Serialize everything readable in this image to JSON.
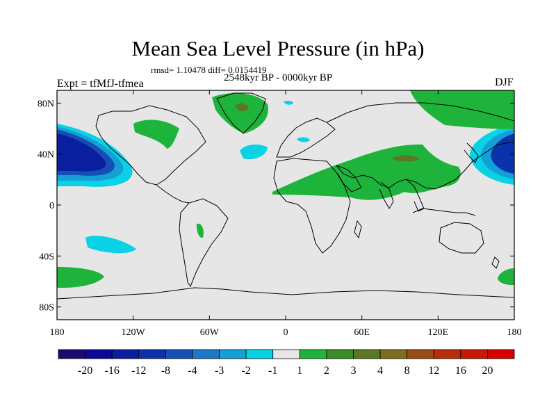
{
  "map": {
    "title": "Mean Sea Level Pressure (in hPa)",
    "stats": "rmsd= 1.10478 diff= 0.0154419",
    "period": "2548kyr BP - 0000kyr BP",
    "experiment": "Expt = tfMfJ-tfmea",
    "season": "DJF",
    "projection": "cylindrical equidistant",
    "lon_range": [
      -180,
      180
    ],
    "lat_range": [
      -90,
      90
    ],
    "lat_ticks": [
      {
        "value": 80,
        "label": "80N"
      },
      {
        "value": 40,
        "label": "40N"
      },
      {
        "value": 0,
        "label": "0"
      },
      {
        "value": -40,
        "label": "40S"
      },
      {
        "value": -80,
        "label": "80S"
      }
    ],
    "lon_ticks": [
      {
        "value": -180,
        "label": "180"
      },
      {
        "value": -120,
        "label": "120W"
      },
      {
        "value": -60,
        "label": "60W"
      },
      {
        "value": 0,
        "label": "0"
      },
      {
        "value": 60,
        "label": "60E"
      },
      {
        "value": 120,
        "label": "120E"
      },
      {
        "value": 180,
        "label": "180"
      }
    ],
    "colorbar": {
      "labels": [
        "-20",
        "-16",
        "-12",
        "-8",
        "-4",
        "-3",
        "-2",
        "-1",
        "1",
        "2",
        "3",
        "4",
        "8",
        "12",
        "16",
        "20"
      ],
      "colors": [
        "#1a0a70",
        "#0a0a96",
        "#0a1ea0",
        "#0a32aa",
        "#1450b4",
        "#1e78c8",
        "#14a0d7",
        "#0ad2e6",
        "#e6e6e6",
        "#1eb43c",
        "#3c8c28",
        "#5a7823",
        "#7d6e1e",
        "#9b4b14",
        "#b92d0a",
        "#c81905",
        "#d70000"
      ]
    },
    "colors": {
      "background": "#e6e6e6",
      "positive_1_2": "#1eb43c",
      "positive_3_4": "#5a7823",
      "negative_1_2": "#0ad2e6",
      "negative_2_3": "#14a0d7",
      "negative_4_8": "#1450b4",
      "negative_8_12": "#0a32aa",
      "negative_12_16": "#0a1ea0"
    }
  }
}
